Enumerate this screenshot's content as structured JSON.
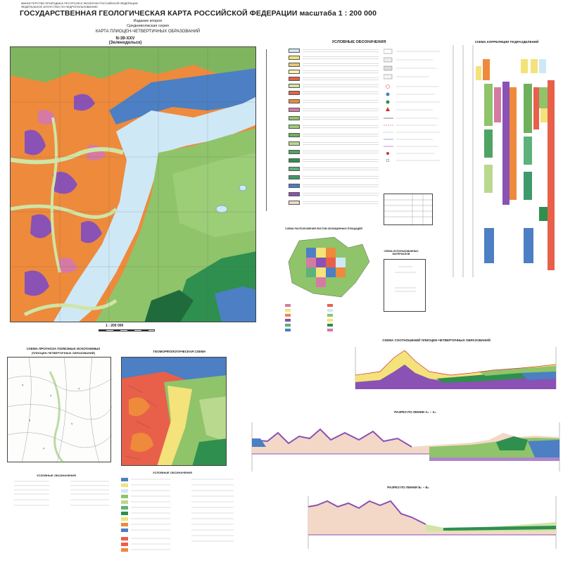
{
  "header": {
    "ministry_line1": "МИНИСТЕРСТВО ПРИРОДНЫХ РЕСУРСОВ И ЭКОЛОГИИ РОССИЙСКОЙ ФЕДЕРАЦИИ",
    "ministry_line2": "ФЕДЕРАЛЬНОЕ АГЕНТСТВО ПО НЕДРОПОЛЬЗОВАНИЮ",
    "title": "ГОСУДАРСТВЕННАЯ ГЕОЛОГИЧЕСКАЯ КАРТА РОССИЙСКОЙ ФЕДЕРАЦИИ масштаба 1 : 200 000",
    "edition": "Издание второе",
    "series": "Средневолжская серия",
    "map_name": "КАРТА ПЛИОЦЕН-ЧЕТВЕРТИЧНЫХ ОБРАЗОВАНИЙ",
    "sheet": "N-39-XXV (Зеленодольск)"
  },
  "main_map": {
    "scale": "1 : 200 000"
  },
  "legend": {
    "title": "УСЛОВНЫЕ ОБОЗНАЧЕНИЯ"
  },
  "correlation": {
    "title": "СХЕМА КОРРЕЛЯЦИИ ПОДРАЗДЕЛЕНИЙ"
  },
  "sections": {
    "relations_title": "СХЕМА СООТНОШЕНИЙ ПЛИОЦЕН-ЧЕТВЕРТИЧНЫХ ОБРАЗОВАНИЙ",
    "section1_title": "РАЗРЕЗ ПО ЛИНИИ А₁ – А₂",
    "section2_title": "РАЗРЕЗ ПО ЛИНИИ Б₁ – Б₂"
  },
  "insets": {
    "deposits_title_1": "СХЕМА ПРОГНОЗА ПОЛЕЗНЫХ ИСКОПАЕМЫХ",
    "deposits_title_2": "(ПЛИОЦЕН-ЧЕТВЕРТИЧНЫХ ОБРАЗОВАНИЙ)",
    "deposits_legend": "УСЛОВНЫЕ ОБОЗНАЧЕНИЯ",
    "geomorph_title": "ГЕОМОРФОЛОГИЧЕСКАЯ СХЕМА",
    "geomorph_legend": "УСЛОВНЫЕ ОБОЗНАЧЕНИЯ",
    "index_title": "СХЕМА РАСПОЛОЖЕНИЯ ЛИСТОВ ОБОБЩЕННЫХ ПЛОЩАДЕЙ",
    "materials_title": "СХЕМА ИСПОЛЬЗОВАННЫХ МАТЕРИАЛОВ"
  },
  "colors": {
    "orange": "#ee8a3c",
    "green": "#8fc46a",
    "dark_green": "#2f8f4e",
    "light_blue": "#cfe8f6",
    "blue": "#4c7fc3",
    "purple": "#8a52b4",
    "pink": "#d67aa3",
    "yellow": "#f4e27a",
    "red": "#e8604a"
  }
}
